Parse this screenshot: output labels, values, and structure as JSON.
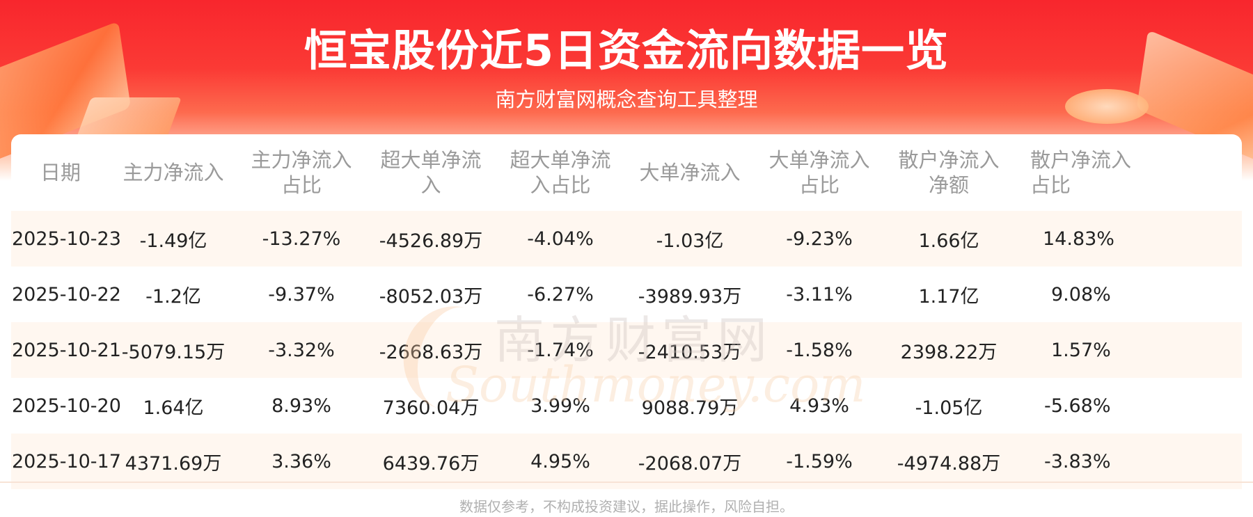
{
  "header": {
    "title": "恒宝股份近5日资金流向数据一览",
    "subtitle": "南方财富网概念查询工具整理"
  },
  "watermark": {
    "cn": "南方财富网",
    "en": "Southmoney.com"
  },
  "table": {
    "columns": [
      "日期",
      "主力净流入",
      "主力净流入占比",
      "超大单净流入",
      "超大单净流入占比",
      "大单净流入",
      "大单净流入占比",
      "散户净流入净额",
      "散户净流入占比"
    ],
    "rows": [
      [
        "2025-10-23",
        "-1.49亿",
        "-13.27%",
        "-4526.89万",
        "-4.04%",
        "-1.03亿",
        "-9.23%",
        "1.66亿",
        "14.83%"
      ],
      [
        "2025-10-22",
        "-1.2亿",
        "-9.37%",
        "-8052.03万",
        "-6.27%",
        "-3989.93万",
        "-3.11%",
        "1.17亿",
        "9.08%"
      ],
      [
        "2025-10-21",
        "-5079.15万",
        "-3.32%",
        "-2668.63万",
        "-1.74%",
        "-2410.53万",
        "-1.58%",
        "2398.22万",
        "1.57%"
      ],
      [
        "2025-10-20",
        "1.64亿",
        "8.93%",
        "7360.04万",
        "3.99%",
        "9088.79万",
        "4.93%",
        "-1.05亿",
        "-5.68%"
      ],
      [
        "2025-10-17",
        "4371.69万",
        "3.36%",
        "6439.76万",
        "4.95%",
        "-2068.07万",
        "-1.59%",
        "-4974.88万",
        "-3.83%"
      ]
    ]
  },
  "footer": {
    "disclaimer": "数据仅参考，不构成投资建议，据此操作，风险自担。"
  },
  "colors": {
    "banner_red": "#f8262d",
    "row_stripe": "#fff7f0",
    "header_text": "#9a9a9a",
    "cell_text": "#222222"
  }
}
